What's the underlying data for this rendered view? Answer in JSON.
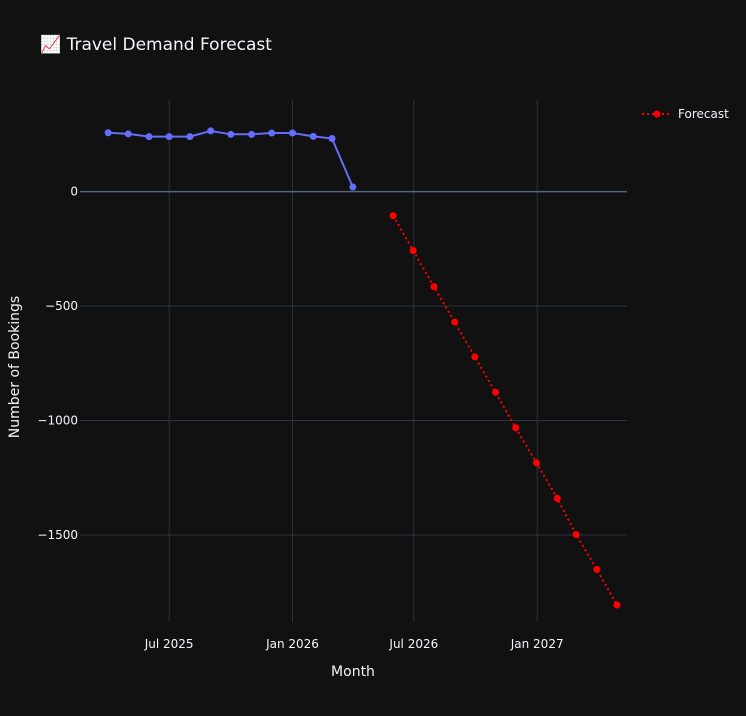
{
  "chart_data": {
    "type": "line",
    "title": "📈 Travel Demand Forecast",
    "xlabel": "Month",
    "ylabel": "Number of Bookings",
    "x_ticks": [
      "Jul 2025",
      "Jan 2026",
      "Jul 2026",
      "Jan 2027"
    ],
    "y_ticks": [
      0,
      -500,
      -1000,
      -1500
    ],
    "y_tick_labels": [
      "0",
      "−500",
      "−1000",
      "−1500"
    ],
    "ylim": [
      -1880,
      400
    ],
    "xlim": [
      "2025-02-18",
      "2027-05-15"
    ],
    "grid": true,
    "legend_position": "top-right",
    "series": [
      {
        "color": "#636efa",
        "line_style": "solid",
        "show_in_legend": false,
        "x": [
          "2025-04-01",
          "2025-05-01",
          "2025-06-01",
          "2025-07-01",
          "2025-08-01",
          "2025-09-01",
          "2025-10-01",
          "2025-11-01",
          "2025-12-01",
          "2026-01-01",
          "2026-02-01",
          "2026-03-01",
          "2026-04-01"
        ],
        "values": [
          257,
          252,
          240,
          240,
          240,
          265,
          250,
          250,
          256,
          256,
          241,
          232,
          20
        ]
      },
      {
        "name": "Forecast",
        "color": "#ff0000",
        "line_style": "dotted",
        "show_in_legend": true,
        "x": [
          "2026-05-31",
          "2026-06-30",
          "2026-07-31",
          "2026-08-31",
          "2026-09-30",
          "2026-10-31",
          "2026-11-30",
          "2026-12-31",
          "2027-01-31",
          "2027-02-28",
          "2027-03-31",
          "2027-04-30"
        ],
        "values": [
          -105,
          -258,
          -415,
          -570,
          -722,
          -877,
          -1032,
          -1185,
          -1340,
          -1498,
          -1650,
          -1806
        ]
      }
    ]
  }
}
